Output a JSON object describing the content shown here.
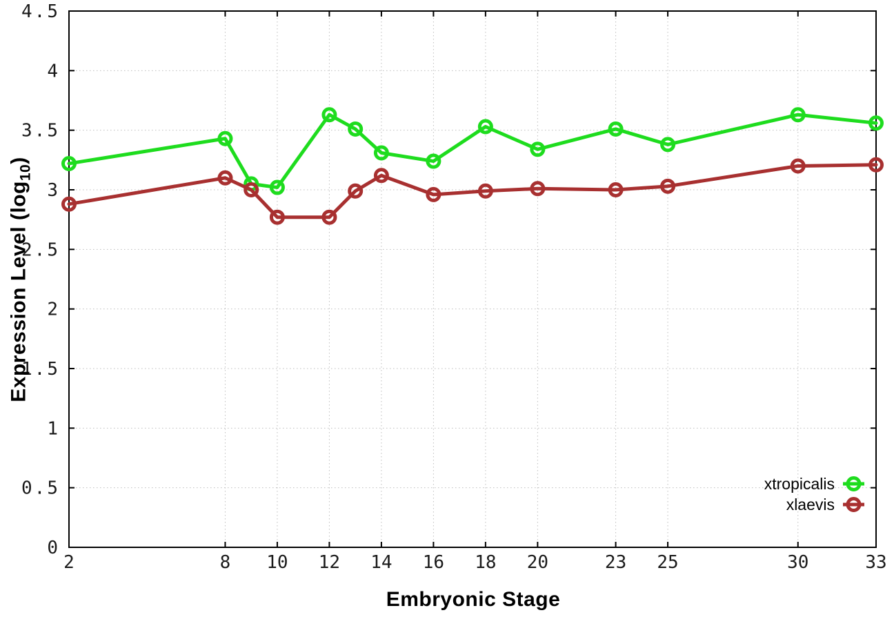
{
  "chart_data": {
    "type": "line",
    "title": "",
    "xlabel": "Embryonic Stage",
    "ylabel": "Expression Level (log10)",
    "ylabel_parts": {
      "main": "Expression Level (log",
      "sub": "10",
      "end": ")"
    },
    "x": [
      2,
      8,
      9,
      10,
      12,
      13,
      14,
      16,
      18,
      20,
      23,
      25,
      30,
      33
    ],
    "xlim": [
      2,
      33
    ],
    "ylim": [
      0,
      4.5
    ],
    "xticks": [
      2,
      8,
      10,
      12,
      14,
      16,
      18,
      20,
      23,
      25,
      30,
      33
    ],
    "xtick_labels": [
      "2",
      "8",
      "10",
      "12",
      "14",
      "16",
      "18",
      "20",
      "23",
      "25",
      "30",
      "33"
    ],
    "yticks": [
      0,
      0.5,
      1,
      1.5,
      2,
      2.5,
      3,
      3.5,
      4,
      4.5
    ],
    "ytick_labels": [
      "0",
      "0.5",
      "1",
      "1.5",
      "2",
      "2.5",
      "3",
      "3.5",
      "4",
      "4.5"
    ],
    "grid": true,
    "legend_position": "bottom-right",
    "series": [
      {
        "name": "xtropicalis",
        "color": "#1edc1e",
        "marker": "open-circle",
        "values": [
          3.22,
          3.43,
          3.05,
          3.02,
          3.63,
          3.51,
          3.31,
          3.24,
          3.53,
          3.34,
          3.51,
          3.38,
          3.63,
          3.56
        ]
      },
      {
        "name": "xlaevis",
        "color": "#a83030",
        "marker": "open-circle",
        "values": [
          2.88,
          3.1,
          3.0,
          2.77,
          2.77,
          2.99,
          3.12,
          2.96,
          2.99,
          3.01,
          3.0,
          3.03,
          3.2,
          3.21
        ]
      }
    ],
    "style": {
      "grid_color": "#bdbdbd",
      "border_color": "#000000",
      "tick_label_color": "#1a1a1a",
      "background": "#ffffff"
    }
  }
}
